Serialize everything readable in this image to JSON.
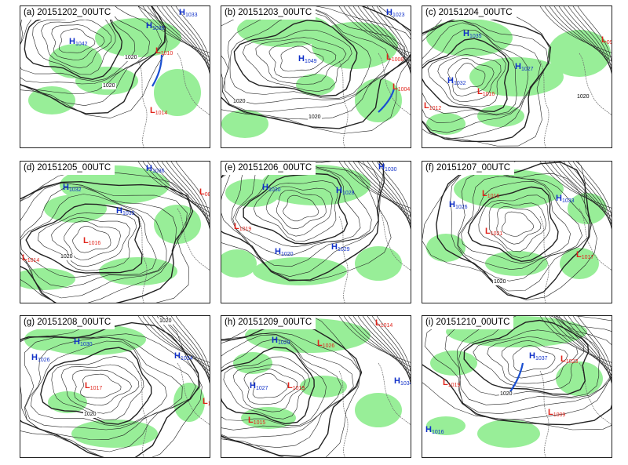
{
  "colors": {
    "precip_shade": "#98ee98",
    "isobar": "#222222",
    "high_label": "#1030c8",
    "low_label": "#e0241b",
    "front": "#1a4fd0",
    "coast": "#6a6a6a"
  },
  "panels": [
    {
      "title": "(a) 20151202_00UTC",
      "highs": [
        {
          "v": "1042"
        },
        {
          "v": "1030"
        },
        {
          "v": "1033"
        }
      ],
      "lows": [
        {
          "v": "1010"
        },
        {
          "v": "1014"
        }
      ],
      "isobar_labels": [
        "1020",
        "1020"
      ]
    },
    {
      "title": "(b) 20151203_00UTC",
      "highs": [
        {
          "v": "1049"
        },
        {
          "v": "1023"
        }
      ],
      "lows": [
        {
          "v": "1008"
        },
        {
          "v": "1004"
        }
      ],
      "isobar_labels": [
        "1020",
        "1020"
      ]
    },
    {
      "title": "(c) 20151204_00UTC",
      "highs": [
        {
          "v": "1035"
        },
        {
          "v": "1032"
        },
        {
          "v": "1027"
        }
      ],
      "lows": [
        {
          "v": "1016"
        },
        {
          "v": "1012"
        },
        {
          "v": "09"
        }
      ],
      "isobar_labels": [
        "1020"
      ]
    },
    {
      "title": "(d) 20151205_00UTC",
      "highs": [
        {
          "v": "1032"
        },
        {
          "v": "1036"
        },
        {
          "v": "1035"
        }
      ],
      "lows": [
        {
          "v": "1016"
        },
        {
          "v": "1014"
        },
        {
          "v": "08"
        }
      ],
      "isobar_labels": [
        "1020"
      ]
    },
    {
      "title": "(e) 20151206_00UTC",
      "highs": [
        {
          "v": "1030"
        },
        {
          "v": "1028"
        },
        {
          "v": "1029"
        },
        {
          "v": "1020"
        },
        {
          "v": "1030"
        }
      ],
      "lows": [
        {
          "v": "1019"
        }
      ],
      "isobar_labels": []
    },
    {
      "title": "(f) 20151207_00UTC",
      "highs": [
        {
          "v": "1026"
        },
        {
          "v": "1033"
        }
      ],
      "lows": [
        {
          "v": "1016"
        },
        {
          "v": "1021"
        },
        {
          "v": "1017"
        }
      ],
      "isobar_labels": [
        "1020"
      ]
    },
    {
      "title": "(g) 20151208_00UTC",
      "highs": [
        {
          "v": "1026"
        },
        {
          "v": "1030"
        },
        {
          "v": "1034"
        }
      ],
      "lows": [
        {
          "v": "1017"
        },
        {
          "v": "1"
        }
      ],
      "isobar_labels": [
        "1020",
        "1020"
      ]
    },
    {
      "title": "(h) 20151209_00UTC",
      "highs": [
        {
          "v": "1029"
        },
        {
          "v": "1027"
        },
        {
          "v": "1034"
        }
      ],
      "lows": [
        {
          "v": "1026"
        },
        {
          "v": "1019"
        },
        {
          "v": "1014"
        },
        {
          "v": "1015"
        }
      ],
      "isobar_labels": []
    },
    {
      "title": "(i) 20151210_00UTC",
      "highs": [
        {
          "v": "1037"
        },
        {
          "v": "1016"
        }
      ],
      "lows": [
        {
          "v": "1019"
        },
        {
          "v": "1023"
        },
        {
          "v": "1009"
        }
      ],
      "isobar_labels": [
        "1020"
      ]
    }
  ]
}
